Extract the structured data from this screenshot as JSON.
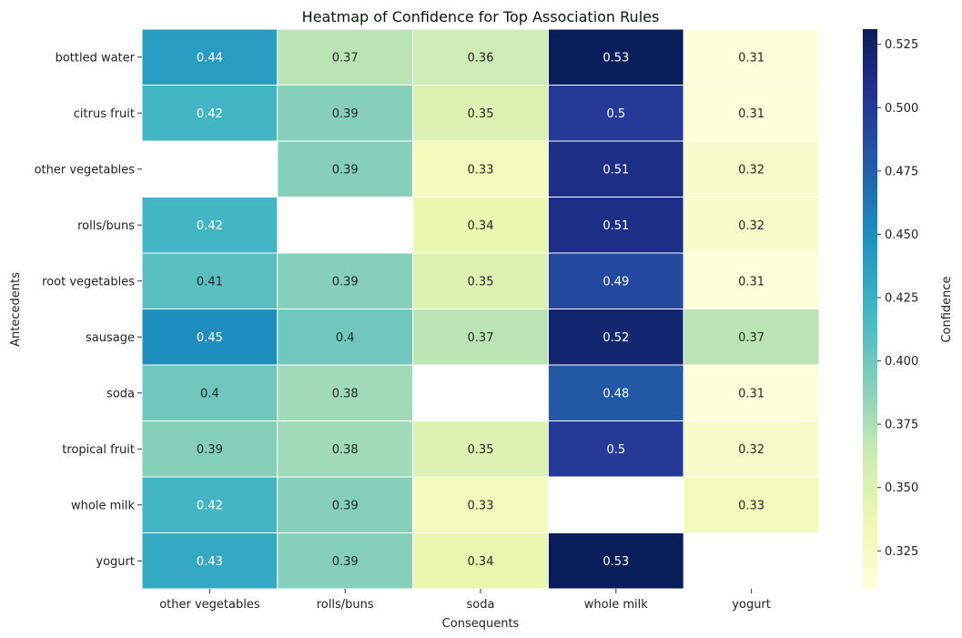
{
  "chart_data": {
    "type": "heatmap",
    "title": "Heatmap of Confidence for Top Association Rules",
    "xlabel": "Consequents",
    "ylabel": "Antecedents",
    "x_categories": [
      "other vegetables",
      "rolls/buns",
      "soda",
      "whole milk",
      "yogurt"
    ],
    "y_categories": [
      "bottled water",
      "citrus fruit",
      "other vegetables",
      "rolls/buns",
      "root vegetables",
      "sausage",
      "soda",
      "tropical fruit",
      "whole milk",
      "yogurt"
    ],
    "values": [
      [
        0.44,
        0.37,
        0.36,
        0.53,
        0.31
      ],
      [
        0.42,
        0.39,
        0.35,
        0.5,
        0.31
      ],
      [
        null,
        0.39,
        0.33,
        0.51,
        0.32
      ],
      [
        0.42,
        null,
        0.34,
        0.51,
        0.32
      ],
      [
        0.41,
        0.39,
        0.35,
        0.49,
        0.31
      ],
      [
        0.45,
        0.4,
        0.37,
        0.52,
        0.37
      ],
      [
        0.4,
        0.38,
        null,
        0.48,
        0.31
      ],
      [
        0.39,
        0.38,
        0.35,
        0.5,
        0.32
      ],
      [
        0.42,
        0.39,
        0.33,
        null,
        0.33
      ],
      [
        0.43,
        0.39,
        0.34,
        0.53,
        null
      ]
    ],
    "colormap": "YlGnBu",
    "colorbar": {
      "label": "Confidence",
      "range": [
        0.31,
        0.531
      ],
      "ticks": [
        0.325,
        0.35,
        0.375,
        0.4,
        0.425,
        0.45,
        0.475,
        0.5,
        0.525
      ],
      "tick_labels": [
        "0.325",
        "0.350",
        "0.375",
        "0.400",
        "0.425",
        "0.450",
        "0.475",
        "0.500",
        "0.525"
      ]
    },
    "annotations": "cell values shown",
    "grid": false,
    "legend": "colorbar right"
  }
}
